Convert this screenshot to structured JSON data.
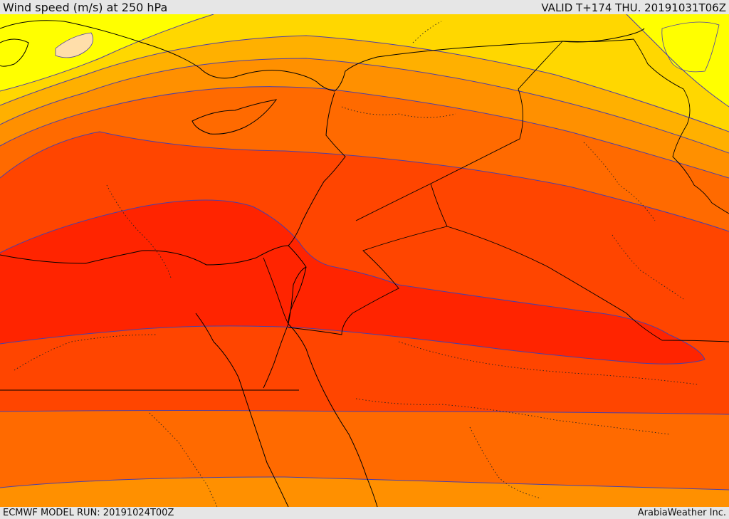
{
  "header": {
    "title": "Wind speed (m/s) at 250 hPa",
    "valid": "VALID T+174 THU. 20191031T06Z"
  },
  "footer": {
    "model_run": "ECMWF MODEL RUN: 20191024T00Z",
    "brand": "ArabiaWeather Inc."
  },
  "map": {
    "field": "wind-speed-250hPa",
    "colors": {
      "band_pale": "#ffdeaa",
      "band_1": "#ffff00",
      "band_2": "#ffd700",
      "band_3": "#ffb000",
      "band_4": "#ff9000",
      "band_5": "#ff6a00",
      "band_6": "#ff4500",
      "band_7": "#ff2400",
      "contour": "#4b3fa8",
      "coast": "#000000"
    }
  }
}
